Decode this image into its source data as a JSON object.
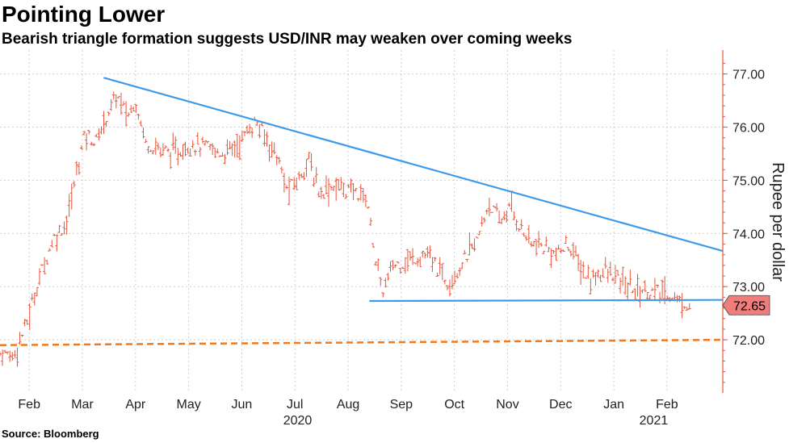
{
  "chart_data": {
    "type": "ohlc",
    "title": "Pointing Lower",
    "subtitle": "Bearish triangle formation suggests USD/INR may weaken over coming weeks",
    "source": "Source: Bloomberg",
    "ylabel": "Rupee per dollar",
    "ylim": [
      71.0,
      77.45
    ],
    "yticks": [
      "77.00",
      "76.00",
      "75.00",
      "74.00",
      "73.00",
      "72.00"
    ],
    "ytick_values": [
      77,
      76,
      75,
      74,
      73,
      72
    ],
    "x_domain": [
      0,
      13.6
    ],
    "months": [
      {
        "label": "Feb",
        "x": 0.55
      },
      {
        "label": "Mar",
        "x": 1.55
      },
      {
        "label": "Apr",
        "x": 2.55
      },
      {
        "label": "May",
        "x": 3.55
      },
      {
        "label": "Jun",
        "x": 4.55
      },
      {
        "label": "Jul",
        "x": 5.55
      },
      {
        "label": "Aug",
        "x": 6.55
      },
      {
        "label": "Sep",
        "x": 7.55
      },
      {
        "label": "Oct",
        "x": 8.55
      },
      {
        "label": "Nov",
        "x": 9.55
      },
      {
        "label": "Dec",
        "x": 10.55
      },
      {
        "label": "Jan",
        "x": 11.55
      },
      {
        "label": "Feb",
        "x": 12.55
      }
    ],
    "years": [
      {
        "label": "2020",
        "x": 5.6
      },
      {
        "label": "2021",
        "x": 12.3
      }
    ],
    "price_path": [
      [
        0.0,
        71.75
      ],
      [
        0.25,
        71.7
      ],
      [
        0.5,
        72.3
      ],
      [
        0.75,
        73.2
      ],
      [
        1.0,
        73.9
      ],
      [
        1.25,
        74.2
      ],
      [
        1.45,
        75.2
      ],
      [
        1.6,
        75.9
      ],
      [
        1.8,
        75.7
      ],
      [
        2.0,
        76.2
      ],
      [
        2.2,
        76.6
      ],
      [
        2.4,
        76.2
      ],
      [
        2.55,
        76.5
      ],
      [
        2.75,
        75.7
      ],
      [
        3.0,
        75.6
      ],
      [
        3.3,
        75.5
      ],
      [
        3.6,
        75.7
      ],
      [
        3.9,
        75.6
      ],
      [
        4.2,
        75.5
      ],
      [
        4.5,
        75.7
      ],
      [
        4.8,
        76.1
      ],
      [
        5.0,
        75.8
      ],
      [
        5.2,
        75.5
      ],
      [
        5.4,
        74.8
      ],
      [
        5.6,
        75.0
      ],
      [
        5.8,
        75.4
      ],
      [
        6.0,
        74.8
      ],
      [
        6.3,
        74.9
      ],
      [
        6.6,
        74.8
      ],
      [
        6.9,
        74.7
      ],
      [
        7.0,
        74.0
      ],
      [
        7.1,
        73.3
      ],
      [
        7.2,
        72.9
      ],
      [
        7.4,
        73.4
      ],
      [
        7.7,
        73.5
      ],
      [
        8.0,
        73.6
      ],
      [
        8.2,
        73.4
      ],
      [
        8.4,
        73.1
      ],
      [
        8.6,
        73.3
      ],
      [
        8.8,
        73.6
      ],
      [
        9.0,
        73.9
      ],
      [
        9.2,
        74.6
      ],
      [
        9.4,
        74.2
      ],
      [
        9.6,
        74.5
      ],
      [
        9.8,
        74.1
      ],
      [
        10.0,
        73.8
      ],
      [
        10.3,
        73.7
      ],
      [
        10.5,
        73.6
      ],
      [
        10.7,
        73.8
      ],
      [
        10.9,
        73.4
      ],
      [
        11.1,
        73.1
      ],
      [
        11.3,
        73.3
      ],
      [
        11.55,
        73.2
      ],
      [
        11.8,
        73.0
      ],
      [
        12.0,
        72.95
      ],
      [
        12.3,
        72.9
      ],
      [
        12.6,
        72.85
      ],
      [
        12.8,
        72.7
      ],
      [
        12.9,
        72.68
      ],
      [
        13.0,
        72.65
      ]
    ],
    "last_value": "72.65",
    "upper_trendline": [
      [
        1.95,
        76.93
      ],
      [
        13.6,
        73.67
      ]
    ],
    "lower_trendline": [
      [
        6.95,
        72.73
      ],
      [
        13.6,
        72.75
      ]
    ],
    "support_line": [
      [
        0.0,
        71.9
      ],
      [
        13.6,
        72.0
      ]
    ],
    "colors": {
      "bars": "#e8543b",
      "trendline": "#3d9be9",
      "support": "#f07a1d",
      "axis": "#e8543b",
      "grid": "#cfcfcf",
      "label_bg": "#f07c7c"
    }
  }
}
